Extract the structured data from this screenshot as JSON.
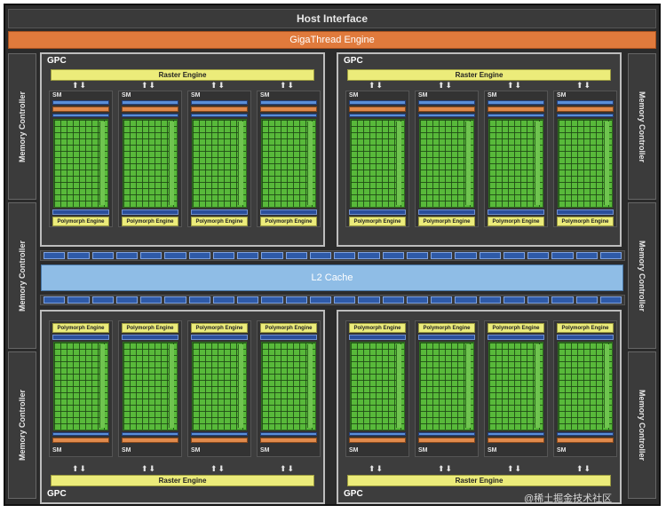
{
  "host_interface": "Host Interface",
  "gigathread_engine": "GigaThread Engine",
  "memory_controller_label": "Memory Controller",
  "l2_cache": "L2 Cache",
  "gpc_label": "GPC",
  "raster_engine_label": "Raster Engine",
  "sm_label": "SM",
  "polymorph_engine_label": "Polymorph Engine",
  "watermark": "@稀土掘金技术社区",
  "colors": {
    "background": "#2b2b2b",
    "gigathread": "#e07a3c",
    "raster_polymorph": "#ecec7a",
    "cuda_cores": "#58b93a",
    "l2_cache": "#8fbde6",
    "memory_bars": "#2e5aa8"
  },
  "icons": [
    "arrow-down-icon",
    "arrow-up-icon"
  ]
}
